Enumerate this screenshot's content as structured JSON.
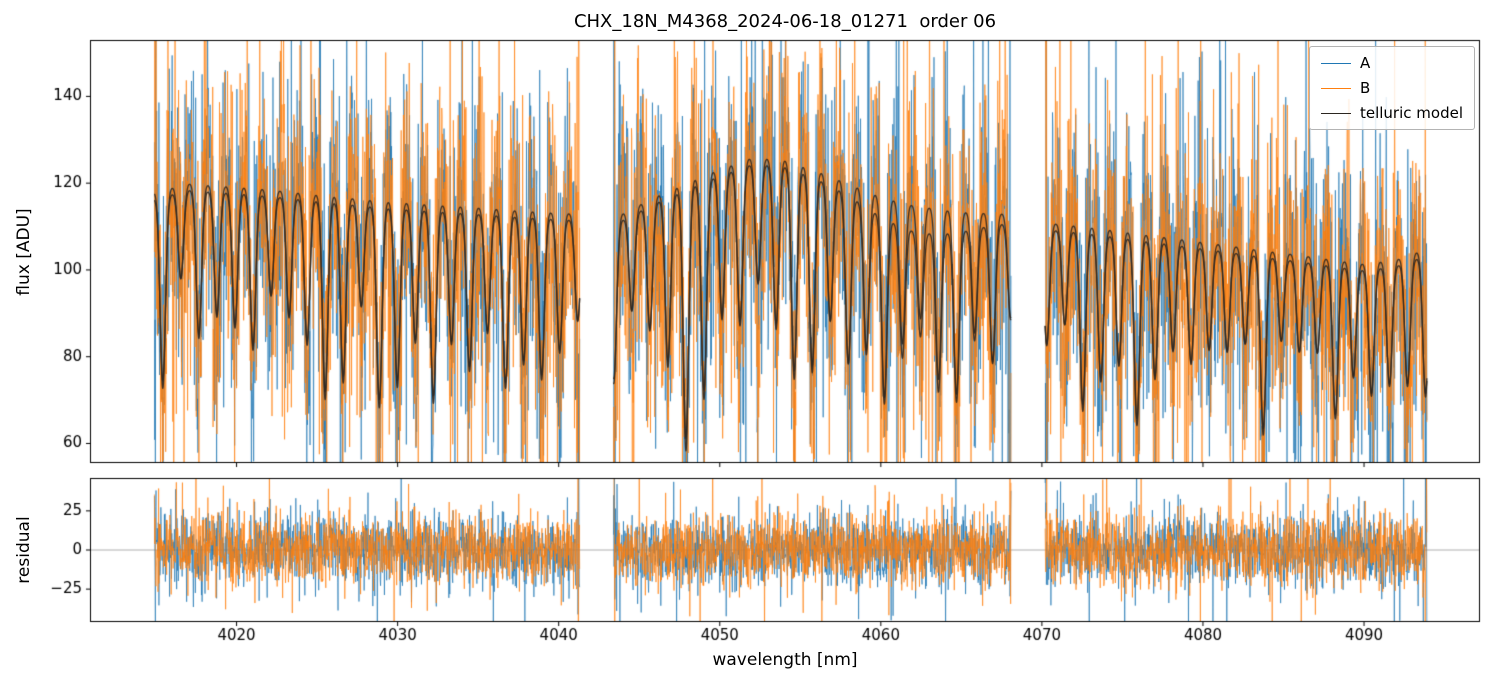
{
  "chart_data": {
    "type": "line",
    "title": "CHX_18N_M4368_2024-06-18_01271  order 06",
    "xlabel": "wavelength [nm]",
    "xlim": [
      4010.9,
      4097.2
    ],
    "xticks": [
      4020,
      4030,
      4040,
      4050,
      4060,
      4070,
      4080,
      4090
    ],
    "segments_nm": [
      [
        4014.9,
        4041.3
      ],
      [
        4043.4,
        4068.1
      ],
      [
        4070.2,
        4093.9
      ]
    ],
    "panels": [
      {
        "name": "flux",
        "ylabel": "flux [ADU]",
        "ylim": [
          55.5,
          153
        ],
        "yticks": [
          60,
          80,
          100,
          120,
          140
        ],
        "height_ratio": 3
      },
      {
        "name": "residual",
        "ylabel": "residual",
        "ylim": [
          -46,
          46
        ],
        "yticks": [
          -25,
          0,
          25
        ],
        "zero_line": 0,
        "height_ratio": 1
      }
    ],
    "series": [
      {
        "name": "A",
        "color": "#1f77b4",
        "alpha": 0.85,
        "line_width": 0.8,
        "role": "spectrum"
      },
      {
        "name": "B",
        "color": "#ff7f0e",
        "alpha": 0.85,
        "line_width": 0.8,
        "role": "spectrum"
      },
      {
        "name": "telluric model",
        "color": "#2b2620",
        "alpha": 0.9,
        "line_width": 1.3,
        "role": "model"
      }
    ],
    "legend": {
      "location": "upper right",
      "entries": [
        "A",
        "B",
        "telluric model"
      ]
    },
    "telluric_model": {
      "continuum_points": [
        [
          4014.9,
          118
        ],
        [
          4017,
          120
        ],
        [
          4021,
          119
        ],
        [
          4025,
          117.5
        ],
        [
          4029,
          116
        ],
        [
          4033,
          115
        ],
        [
          4037,
          114
        ],
        [
          4041.3,
          113
        ],
        [
          4043.4,
          112
        ],
        [
          4046,
          117
        ],
        [
          4049,
          122
        ],
        [
          4052,
          126
        ],
        [
          4054,
          125.5
        ],
        [
          4056,
          123
        ],
        [
          4058,
          120
        ],
        [
          4060,
          117
        ],
        [
          4062,
          115
        ],
        [
          4065,
          113.5
        ],
        [
          4068.1,
          113
        ],
        [
          4070.2,
          111
        ],
        [
          4073,
          110
        ],
        [
          4076,
          108.5
        ],
        [
          4079,
          107
        ],
        [
          4082,
          105.5
        ],
        [
          4085,
          104
        ],
        [
          4088,
          102.5
        ],
        [
          4090,
          101.5
        ],
        [
          4092,
          102.5
        ],
        [
          4093.9,
          105
        ]
      ],
      "dip_start_nm": 4014.3,
      "dip_spacing_nm": 1.12,
      "dip_sigma_nm": 0.17,
      "dip_depth_base": 20,
      "dip_depth_var": 28,
      "deep_region_center": 4048,
      "deep_region_width": 5,
      "deep_region_boost": 0.3,
      "second_trace_offset": -1.5,
      "second_trace_dip_scale": 0.93,
      "divergence_center": 4062.5,
      "divergence_width": 4,
      "divergence_depth": 4.5
    },
    "noise": {
      "flux_sigma": 16,
      "residual_sigma": 11,
      "tail_prob": 0.05,
      "tail_mult": 2.6,
      "edge_points": 6,
      "edge_mult": 3.5,
      "sample_step_nm": 0.02,
      "seed": 20240618
    },
    "axis_color": "#000000",
    "zero_line_color": "#999999",
    "tick_font_px": 15
  }
}
